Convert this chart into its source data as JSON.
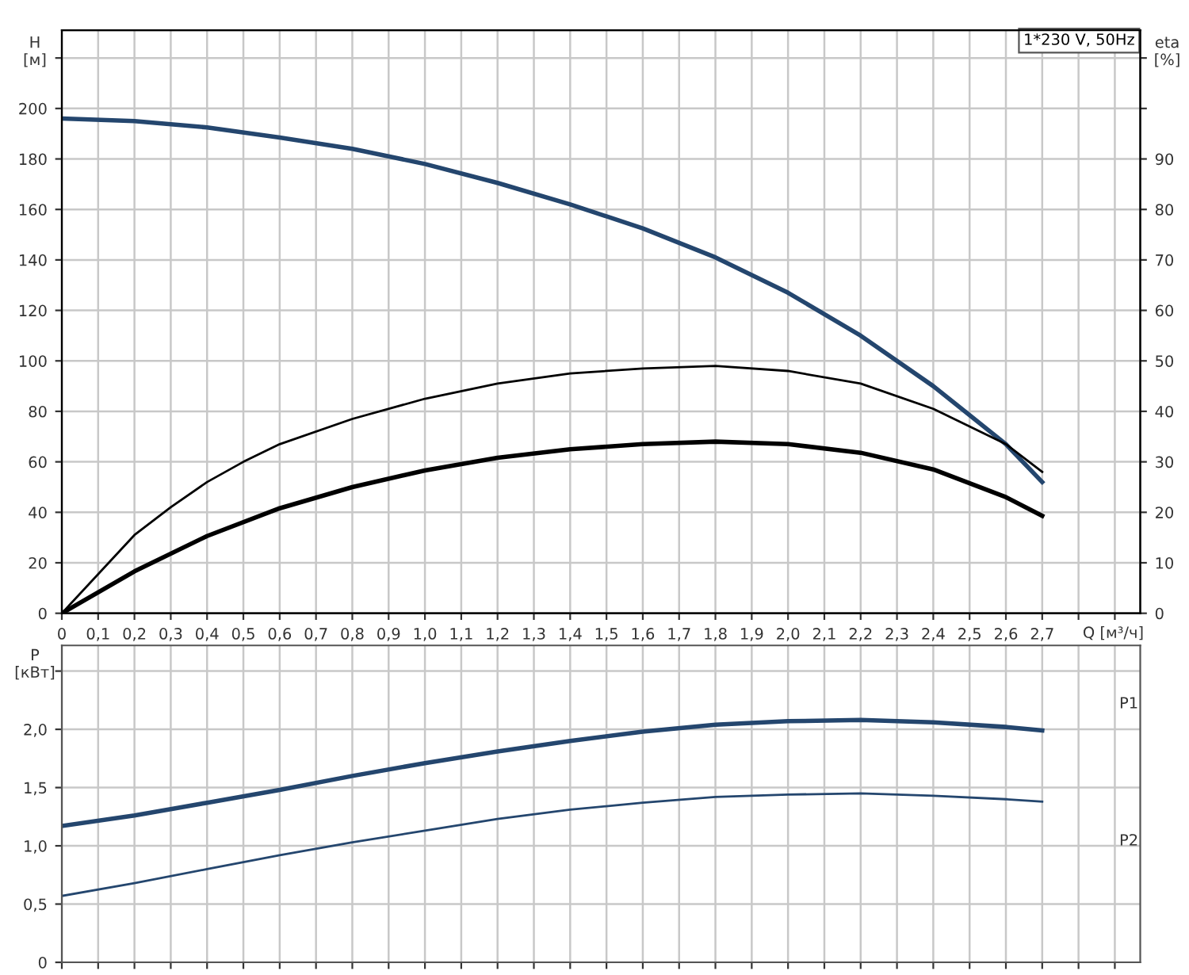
{
  "chart_data": [
    {
      "type": "line",
      "title": "1*230 V, 50Hz",
      "xlabel": "Q [м³/ч]",
      "ylabel": "H\n[м]",
      "y2label": "eta\n[%]",
      "xlim": [
        0,
        2.97
      ],
      "xticks": [
        {
          "value": 0,
          "label": "0"
        },
        {
          "value": 0.1,
          "label": "0,1"
        },
        {
          "value": 0.2,
          "label": "0,2"
        },
        {
          "value": 0.3,
          "label": "0,3"
        },
        {
          "value": 0.4,
          "label": "0,4"
        },
        {
          "value": 0.5,
          "label": "0,5"
        },
        {
          "value": 0.6,
          "label": "0,6"
        },
        {
          "value": 0.7,
          "label": "0,7"
        },
        {
          "value": 0.8,
          "label": "0,8"
        },
        {
          "value": 0.9,
          "label": "0,9"
        },
        {
          "value": 1.0,
          "label": "1,0"
        },
        {
          "value": 1.1,
          "label": "1,1"
        },
        {
          "value": 1.2,
          "label": "1,2"
        },
        {
          "value": 1.3,
          "label": "1,3"
        },
        {
          "value": 1.4,
          "label": "1,4"
        },
        {
          "value": 1.5,
          "label": "1,5"
        },
        {
          "value": 1.6,
          "label": "1,6"
        },
        {
          "value": 1.7,
          "label": "1,7"
        },
        {
          "value": 1.8,
          "label": "1,8"
        },
        {
          "value": 1.9,
          "label": "1,9"
        },
        {
          "value": 2.0,
          "label": "2,0"
        },
        {
          "value": 2.1,
          "label": "2,1"
        },
        {
          "value": 2.2,
          "label": "2,2"
        },
        {
          "value": 2.3,
          "label": "2,3"
        },
        {
          "value": 2.4,
          "label": "2,4"
        },
        {
          "value": 2.5,
          "label": "2,5"
        },
        {
          "value": 2.6,
          "label": "2,6"
        },
        {
          "value": 2.7,
          "label": "2,7"
        },
        {
          "value": 2.8,
          "label": null
        },
        {
          "value": 2.9,
          "label": null
        }
      ],
      "ylim": [
        0,
        231
      ],
      "yticks": [
        0,
        20,
        40,
        60,
        80,
        100,
        120,
        140,
        160,
        180,
        200,
        {
          "value": 220,
          "label": null
        }
      ],
      "y2lim": [
        0,
        115.5
      ],
      "y2ticks": [
        0,
        10,
        20,
        30,
        40,
        50,
        60,
        70,
        80,
        90,
        {
          "value": 100,
          "label": null
        },
        {
          "value": 110,
          "label": null
        }
      ],
      "grid": true,
      "legend": false,
      "marker": "none",
      "line_style": "solid",
      "series": [
        {
          "color": "#24466e",
          "x": [
            0,
            0.2,
            0.4,
            0.6,
            0.8,
            1.0,
            1.2,
            1.4,
            1.6,
            1.8,
            2.0,
            2.2,
            2.4,
            2.6,
            2.7
          ],
          "values": [
            196,
            195,
            192.5,
            188.5,
            184,
            178,
            170.5,
            162,
            152.5,
            141,
            127,
            110,
            90,
            67,
            52
          ]
        },
        {
          "color": "#000000",
          "axis": "y2",
          "x": [
            0,
            0.2,
            0.3,
            0.4,
            0.5,
            0.6,
            0.8,
            1.0,
            1.2,
            1.4,
            1.6,
            1.8,
            2.0,
            2.2,
            2.4,
            2.6,
            2.7
          ],
          "values": [
            0,
            15.5,
            21,
            26,
            30,
            33.5,
            38.5,
            42.5,
            45.5,
            47.5,
            48.5,
            49,
            48,
            45.5,
            40.5,
            33.5,
            28
          ]
        },
        {
          "color": "#000000",
          "axis": "y2",
          "x": [
            0,
            0.2,
            0.4,
            0.6,
            0.8,
            1.0,
            1.2,
            1.4,
            1.6,
            1.8,
            2.0,
            2.2,
            2.4,
            2.6,
            2.7
          ],
          "values": [
            0,
            8.3,
            15.3,
            20.8,
            25,
            28.3,
            30.8,
            32.5,
            33.5,
            34,
            33.5,
            31.8,
            28.5,
            23,
            19.3
          ]
        }
      ]
    },
    {
      "type": "line",
      "ylabel": "P\n[кВт]",
      "tick_labels": "y",
      "xlim": [
        0,
        2.97
      ],
      "xticks": [
        {
          "value": 0,
          "label": null
        },
        {
          "value": 0.1,
          "label": null
        },
        {
          "value": 0.2,
          "label": null
        },
        {
          "value": 0.3,
          "label": null
        },
        {
          "value": 0.4,
          "label": null
        },
        {
          "value": 0.5,
          "label": null
        },
        {
          "value": 0.6,
          "label": null
        },
        {
          "value": 0.7,
          "label": null
        },
        {
          "value": 0.8,
          "label": null
        },
        {
          "value": 0.9,
          "label": null
        },
        {
          "value": 1.0,
          "label": null
        },
        {
          "value": 1.1,
          "label": null
        },
        {
          "value": 1.2,
          "label": null
        },
        {
          "value": 1.3,
          "label": null
        },
        {
          "value": 1.4,
          "label": null
        },
        {
          "value": 1.5,
          "label": null
        },
        {
          "value": 1.6,
          "label": null
        },
        {
          "value": 1.7,
          "label": null
        },
        {
          "value": 1.8,
          "label": null
        },
        {
          "value": 1.9,
          "label": null
        },
        {
          "value": 2.0,
          "label": null
        },
        {
          "value": 2.1,
          "label": null
        },
        {
          "value": 2.2,
          "label": null
        },
        {
          "value": 2.3,
          "label": null
        },
        {
          "value": 2.4,
          "label": null
        },
        {
          "value": 2.5,
          "label": null
        },
        {
          "value": 2.6,
          "label": null
        },
        {
          "value": 2.7,
          "label": null
        },
        {
          "value": 2.8,
          "label": null
        },
        {
          "value": 2.9,
          "label": null
        }
      ],
      "ylim": [
        0,
        2.72
      ],
      "yticks": [
        0,
        {
          "value": 0.5,
          "label": "0,5"
        },
        {
          "value": 1.0,
          "label": "1,0"
        },
        {
          "value": 1.5,
          "label": "1,5"
        },
        {
          "value": 2.0,
          "label": "2,0"
        },
        {
          "value": 2.5,
          "label": null
        }
      ],
      "grid": true,
      "legend": false,
      "marker": "none",
      "line_style": "solid",
      "series": [
        {
          "name": "P1",
          "color": "#24466e",
          "x": [
            0,
            0.2,
            0.4,
            0.6,
            0.8,
            1.0,
            1.2,
            1.4,
            1.6,
            1.8,
            2.0,
            2.2,
            2.4,
            2.6,
            2.7
          ],
          "values": [
            1.17,
            1.26,
            1.37,
            1.48,
            1.6,
            1.71,
            1.81,
            1.9,
            1.98,
            2.04,
            2.07,
            2.08,
            2.06,
            2.02,
            1.99
          ]
        },
        {
          "name": "P2",
          "color": "#24466e",
          "x": [
            0,
            0.2,
            0.4,
            0.6,
            0.8,
            1.0,
            1.2,
            1.4,
            1.6,
            1.8,
            2.0,
            2.2,
            2.4,
            2.6,
            2.7
          ],
          "values": [
            0.57,
            0.68,
            0.8,
            0.92,
            1.03,
            1.13,
            1.23,
            1.31,
            1.37,
            1.42,
            1.44,
            1.45,
            1.43,
            1.4,
            1.38
          ]
        }
      ]
    }
  ]
}
